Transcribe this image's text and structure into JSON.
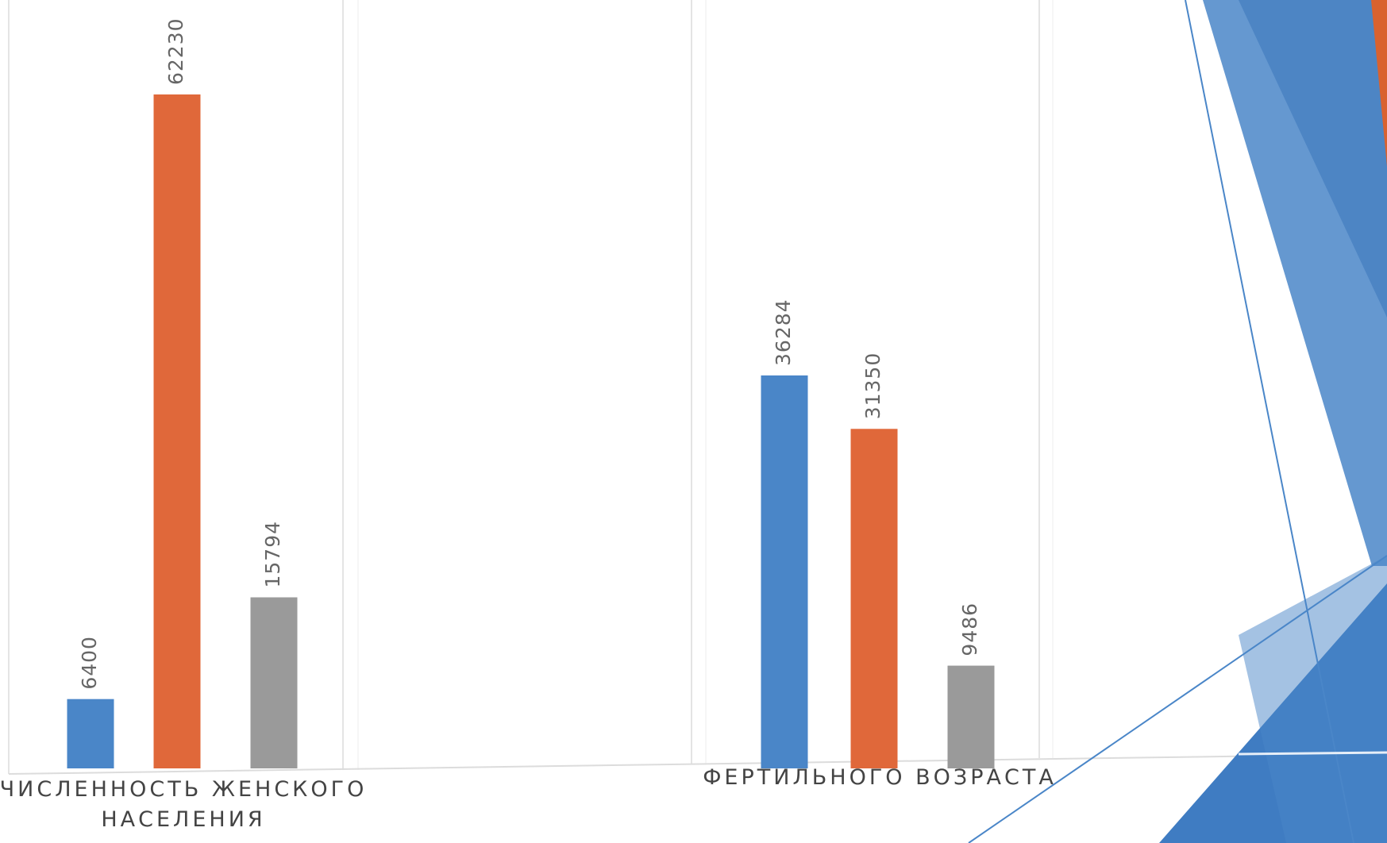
{
  "chart_data": {
    "type": "bar",
    "categories": [
      "ЧИСЛЕННОСТЬ ЖЕНСКОГО НАСЕЛЕНИЯ",
      "ФЕРТИЛЬНОГО ВОЗРАСТА"
    ],
    "series": [
      {
        "color": "#4a86c8",
        "values": [
          6400,
          36284
        ]
      },
      {
        "color": "#e0683a",
        "values": [
          62230,
          31350
        ]
      },
      {
        "color": "#9a9a9a",
        "values": [
          15794,
          9486
        ]
      }
    ]
  }
}
